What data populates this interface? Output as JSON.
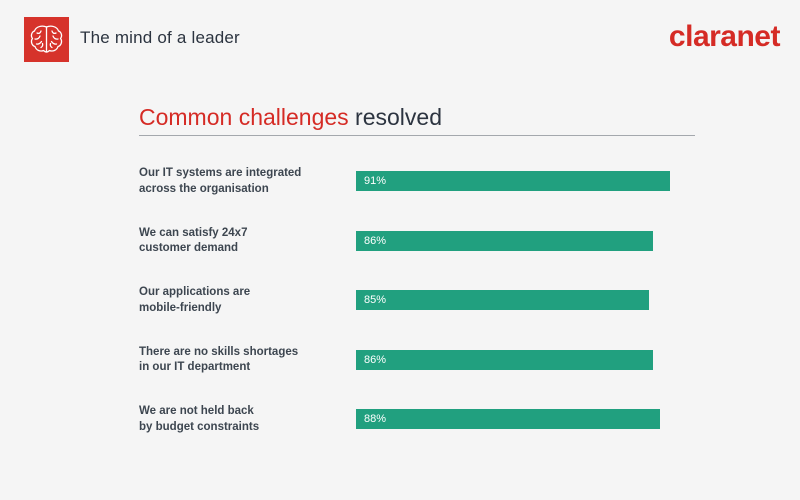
{
  "header": {
    "title": "The mind of a leader",
    "brand": "claranet",
    "logo_icon": "brain-icon"
  },
  "heading": {
    "accent": "Common challenges",
    "rest": " resolved"
  },
  "colors": {
    "brand_red": "#d52b25",
    "bar_green": "#21a07f",
    "text_dark": "#2c3440"
  },
  "chart_data": {
    "type": "bar",
    "orientation": "horizontal",
    "title": "Common challenges resolved",
    "categories": [
      "Our IT systems are integrated\nacross the organisation",
      "We can satisfy 24x7\ncustomer demand",
      "Our applications are\nmobile-friendly",
      "There are no skills shortages\nin our IT department",
      "We are not held back\nby budget constraints"
    ],
    "values": [
      91,
      86,
      85,
      86,
      88
    ],
    "value_labels": [
      "91%",
      "86%",
      "85%",
      "86%",
      "88%"
    ],
    "xlim": [
      0,
      100
    ],
    "grid": false
  }
}
